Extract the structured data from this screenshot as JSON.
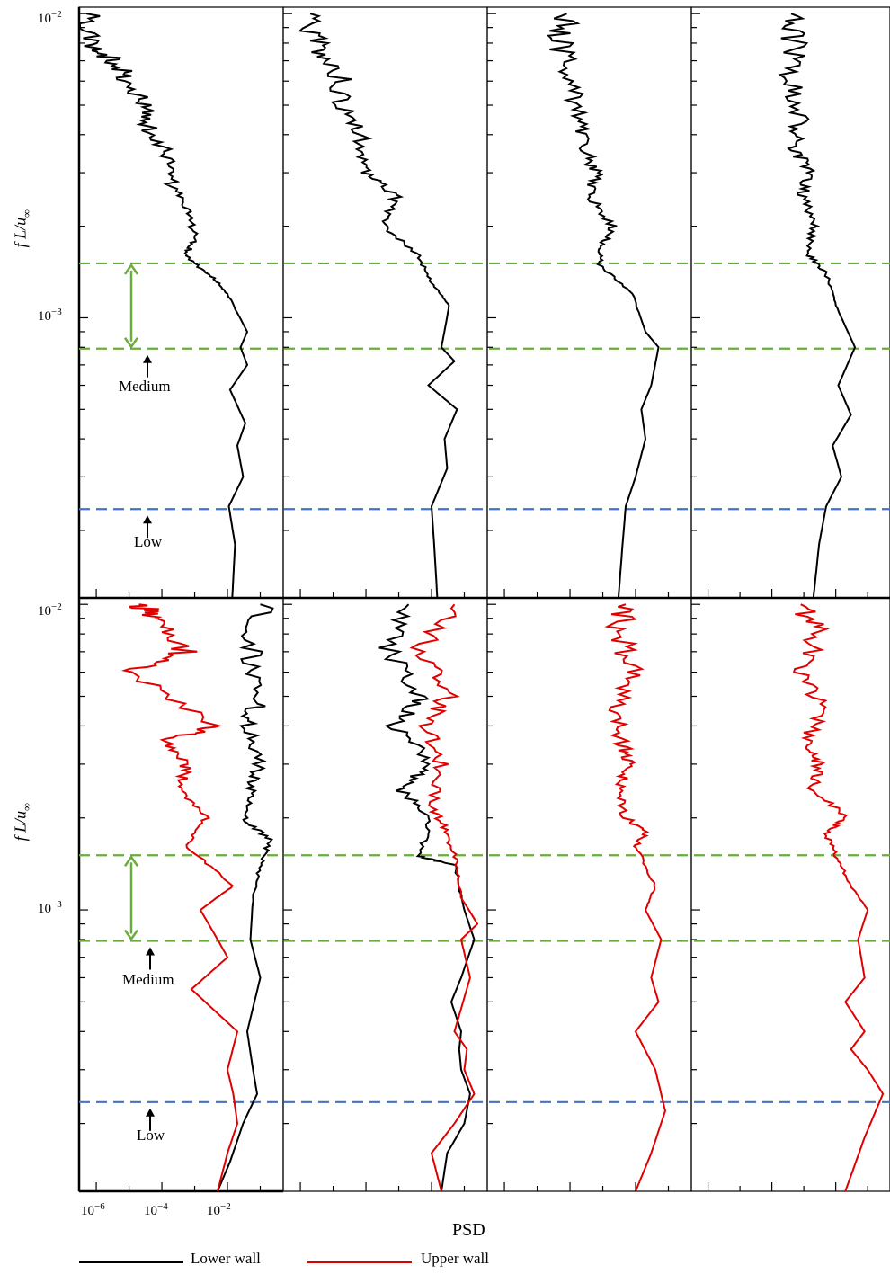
{
  "chart_data": {
    "type": "line",
    "ylabel_main": "f L/u",
    "ylabel_sub": "∞",
    "xlabel": "PSD",
    "x_scale": "log",
    "y_scale": "log",
    "xlim": [
      3e-07,
      0.5
    ],
    "ylim": [
      0.00012,
      0.0105
    ],
    "y_ticklabels": [
      {
        "value": 0.01,
        "base": "10",
        "exp": "−2"
      },
      {
        "value": 0.001,
        "base": "10",
        "exp": "−3"
      }
    ],
    "x_ticklabels": [
      {
        "value": 1e-06,
        "base": "10",
        "exp": "−6"
      },
      {
        "value": 0.0001,
        "base": "10",
        "exp": "−4"
      },
      {
        "value": 0.01,
        "base": "10",
        "exp": "−2"
      }
    ],
    "reference_lines": [
      {
        "y": 0.00151,
        "color": "#6aad3d",
        "style": "dashed"
      },
      {
        "y": 0.000792,
        "color": "#6aad3d",
        "style": "dashed"
      },
      {
        "y": 0.000235,
        "color": "#4472c4",
        "style": "dashed"
      }
    ],
    "annotations": {
      "medium": "Medium",
      "low": "Low"
    },
    "panels": [
      {
        "row": 0,
        "col": 0,
        "series": [
          {
            "name": "Lower wall",
            "color": "#000000",
            "points": [
              [
                0.014,
                0.00012
              ],
              [
                0.017,
                0.00018
              ],
              [
                0.011,
                0.00024
              ],
              [
                0.03,
                0.0003
              ],
              [
                0.02,
                0.00038
              ],
              [
                0.035,
                0.00045
              ],
              [
                0.012,
                0.00058
              ],
              [
                0.04,
                0.0007
              ],
              [
                0.025,
                0.0008
              ],
              [
                0.04,
                0.0009
              ],
              [
                0.01,
                0.0012
              ],
              [
                0.004,
                0.00135
              ],
              [
                0.0005,
                0.0016
              ],
              [
                0.0011,
                0.0018
              ],
              [
                0.0006,
                0.0022
              ],
              [
                0.0002,
                0.0027
              ],
              [
                0.00015,
                0.0034
              ],
              [
                4e-05,
                0.0042
              ],
              [
                3e-05,
                0.005
              ],
              [
                1e-05,
                0.006
              ],
              [
                4e-06,
                0.007
              ],
              [
                5e-07,
                0.008
              ],
              [
                5e-07,
                0.01
              ]
            ]
          }
        ]
      },
      {
        "row": 0,
        "col": 1,
        "series": [
          {
            "name": "Lower wall",
            "color": "#000000",
            "points": [
              [
                0.015,
                0.00012
              ],
              [
                0.012,
                0.00018
              ],
              [
                0.01,
                0.00024
              ],
              [
                0.03,
                0.00032
              ],
              [
                0.025,
                0.0004
              ],
              [
                0.06,
                0.0005
              ],
              [
                0.008,
                0.0006
              ],
              [
                0.05,
                0.00072
              ],
              [
                0.02,
                0.0008
              ],
              [
                0.035,
                0.0011
              ],
              [
                0.01,
                0.0013
              ],
              [
                0.004,
                0.0016
              ],
              [
                0.0004,
                0.002
              ],
              [
                0.0008,
                0.0025
              ],
              [
                0.0001,
                0.003
              ],
              [
                8e-05,
                0.0038
              ],
              [
                2e-05,
                0.005
              ],
              [
                1.5e-05,
                0.0065
              ],
              [
                3e-06,
                0.008
              ],
              [
                2e-06,
                0.01
              ]
            ]
          }
        ]
      },
      {
        "row": 0,
        "col": 2,
        "series": [
          {
            "name": "Lower wall",
            "color": "#000000",
            "points": [
              [
                0.003,
                0.00012
              ],
              [
                0.004,
                0.00018
              ],
              [
                0.005,
                0.00024
              ],
              [
                0.01,
                0.0003
              ],
              [
                0.02,
                0.0004
              ],
              [
                0.015,
                0.0005
              ],
              [
                0.03,
                0.0006
              ],
              [
                0.05,
                0.0008
              ],
              [
                0.02,
                0.0009
              ],
              [
                0.008,
                0.0012
              ],
              [
                0.0008,
                0.0015
              ],
              [
                0.0009,
                0.0017
              ],
              [
                0.002,
                0.002
              ],
              [
                0.0004,
                0.0025
              ],
              [
                0.0006,
                0.003
              ],
              [
                0.0003,
                0.0036
              ],
              [
                0.0002,
                0.0045
              ],
              [
                0.0001,
                0.006
              ],
              [
                5e-05,
                0.008
              ],
              [
                8e-05,
                0.01
              ]
            ]
          }
        ]
      },
      {
        "row": 0,
        "col": 3,
        "series": [
          {
            "name": "Lower wall",
            "color": "#000000",
            "points": [
              [
                0.002,
                0.00012
              ],
              [
                0.003,
                0.00018
              ],
              [
                0.005,
                0.00024
              ],
              [
                0.015,
                0.0003
              ],
              [
                0.008,
                0.00038
              ],
              [
                0.03,
                0.00048
              ],
              [
                0.012,
                0.0006
              ],
              [
                0.04,
                0.0008
              ],
              [
                0.01,
                0.0011
              ],
              [
                0.005,
                0.0014
              ],
              [
                0.0015,
                0.0016
              ],
              [
                0.002,
                0.002
              ],
              [
                0.0009,
                0.0025
              ],
              [
                0.0015,
                0.003
              ],
              [
                0.0005,
                0.0036
              ],
              [
                0.0008,
                0.0045
              ],
              [
                0.0004,
                0.006
              ],
              [
                0.0005,
                0.008
              ],
              [
                0.0004,
                0.01
              ]
            ]
          }
        ]
      },
      {
        "row": 1,
        "col": 0,
        "series": [
          {
            "name": "Lower wall",
            "color": "#000000",
            "points": [
              [
                0.005,
                0.00012
              ],
              [
                0.012,
                0.00015
              ],
              [
                0.03,
                0.0002
              ],
              [
                0.08,
                0.00025
              ],
              [
                0.06,
                0.0003
              ],
              [
                0.04,
                0.0004
              ],
              [
                0.1,
                0.0006
              ],
              [
                0.05,
                0.0008
              ],
              [
                0.06,
                0.0011
              ],
              [
                0.1,
                0.0014
              ],
              [
                0.2,
                0.0017
              ],
              [
                0.03,
                0.002
              ],
              [
                0.05,
                0.0025
              ],
              [
                0.1,
                0.003
              ],
              [
                0.04,
                0.004
              ],
              [
                0.1,
                0.005
              ],
              [
                0.05,
                0.007
              ],
              [
                0.1,
                0.01
              ]
            ]
          },
          {
            "name": "Upper wall",
            "color": "#e00000",
            "points": [
              [
                0.005,
                0.00012
              ],
              [
                0.01,
                0.00016
              ],
              [
                0.02,
                0.0002
              ],
              [
                0.015,
                0.00025
              ],
              [
                0.01,
                0.0003
              ],
              [
                0.02,
                0.0004
              ],
              [
                0.0008,
                0.00055
              ],
              [
                0.01,
                0.0007
              ],
              [
                0.005,
                0.0008
              ],
              [
                0.0015,
                0.001
              ],
              [
                0.015,
                0.0012
              ],
              [
                0.0006,
                0.0016
              ],
              [
                0.002,
                0.002
              ],
              [
                0.0004,
                0.0025
              ],
              [
                0.0005,
                0.003
              ],
              [
                0.00015,
                0.0036
              ],
              [
                0.005,
                0.004
              ],
              [
                1e-05,
                0.006
              ],
              [
                0.0005,
                0.007
              ],
              [
                0.0001,
                0.009
              ],
              [
                2e-05,
                0.01
              ]
            ]
          }
        ]
      },
      {
        "row": 1,
        "col": 1,
        "series": [
          {
            "name": "Lower wall",
            "color": "#000000",
            "points": [
              [
                0.02,
                0.00012
              ],
              [
                0.03,
                0.00016
              ],
              [
                0.1,
                0.0002
              ],
              [
                0.15,
                0.00025
              ],
              [
                0.08,
                0.0003
              ],
              [
                0.07,
                0.00035
              ],
              [
                0.08,
                0.0004
              ],
              [
                0.04,
                0.0005
              ],
              [
                0.08,
                0.0006
              ],
              [
                0.2,
                0.0008
              ],
              [
                0.1,
                0.001
              ],
              [
                0.05,
                0.0014
              ],
              [
                0.004,
                0.0015
              ],
              [
                0.01,
                0.002
              ],
              [
                0.001,
                0.0025
              ],
              [
                0.01,
                0.003
              ],
              [
                0.0008,
                0.004
              ],
              [
                0.005,
                0.005
              ],
              [
                0.0005,
                0.007
              ],
              [
                0.002,
                0.01
              ]
            ]
          },
          {
            "name": "Upper wall",
            "color": "#e00000",
            "points": [
              [
                0.02,
                0.00012
              ],
              [
                0.01,
                0.00016
              ],
              [
                0.05,
                0.0002
              ],
              [
                0.2,
                0.00025
              ],
              [
                0.1,
                0.0003
              ],
              [
                0.12,
                0.00035
              ],
              [
                0.05,
                0.0004
              ],
              [
                0.15,
                0.0006
              ],
              [
                0.08,
                0.0008
              ],
              [
                0.25,
                0.0009
              ],
              [
                0.08,
                0.0011
              ],
              [
                0.06,
                0.0014
              ],
              [
                0.03,
                0.0018
              ],
              [
                0.01,
                0.0022
              ],
              [
                0.02,
                0.003
              ],
              [
                0.008,
                0.004
              ],
              [
                0.03,
                0.005
              ],
              [
                0.005,
                0.007
              ],
              [
                0.05,
                0.01
              ]
            ]
          }
        ]
      },
      {
        "row": 1,
        "col": 2,
        "series": [
          {
            "name": "Upper wall",
            "color": "#e00000",
            "points": [
              [
                0.01,
                0.00012
              ],
              [
                0.03,
                0.00016
              ],
              [
                0.08,
                0.00022
              ],
              [
                0.04,
                0.0003
              ],
              [
                0.01,
                0.0004
              ],
              [
                0.05,
                0.0005
              ],
              [
                0.03,
                0.0006
              ],
              [
                0.06,
                0.0008
              ],
              [
                0.02,
                0.001
              ],
              [
                0.04,
                0.0012
              ],
              [
                0.01,
                0.0016
              ],
              [
                0.02,
                0.0018
              ],
              [
                0.005,
                0.002
              ],
              [
                0.003,
                0.0025
              ],
              [
                0.006,
                0.003
              ],
              [
                0.004,
                0.0035
              ],
              [
                0.002,
                0.0045
              ],
              [
                0.008,
                0.006
              ],
              [
                0.003,
                0.008
              ],
              [
                0.005,
                0.01
              ]
            ]
          }
        ]
      },
      {
        "row": 1,
        "col": 3,
        "series": [
          {
            "name": "Upper wall",
            "color": "#e00000",
            "points": [
              [
                0.02,
                0.00012
              ],
              [
                0.08,
                0.00018
              ],
              [
                0.3,
                0.00025
              ],
              [
                0.1,
                0.0003
              ],
              [
                0.03,
                0.00035
              ],
              [
                0.08,
                0.0004
              ],
              [
                0.02,
                0.0005
              ],
              [
                0.08,
                0.0006
              ],
              [
                0.05,
                0.0008
              ],
              [
                0.1,
                0.001
              ],
              [
                0.03,
                0.0012
              ],
              [
                0.01,
                0.0015
              ],
              [
                0.005,
                0.0018
              ],
              [
                0.02,
                0.002
              ],
              [
                0.002,
                0.0025
              ],
              [
                0.003,
                0.003
              ],
              [
                0.001,
                0.0035
              ],
              [
                0.004,
                0.0045
              ],
              [
                0.001,
                0.006
              ],
              [
                0.003,
                0.008
              ],
              [
                0.0008,
                0.01
              ]
            ]
          }
        ]
      }
    ],
    "legend": [
      {
        "label": "Lower wall",
        "color": "#000000"
      },
      {
        "label": "Upper wall",
        "color": "#e00000"
      }
    ]
  }
}
